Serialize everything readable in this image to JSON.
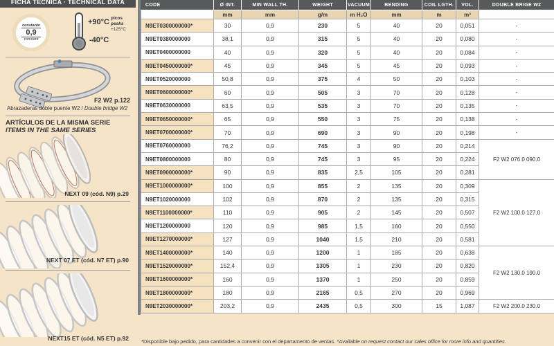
{
  "sidebar": {
    "header": "FICHA TÉCNICA · TECHNICAL DATA",
    "badge": {
      "top": "constante",
      "value": "0,9",
      "bottom": "constant"
    },
    "temperature": {
      "max": "+90°C",
      "min": "-40°C",
      "peaks_es": "picos",
      "peaks_en": "peaks",
      "peaks_value": "+125°C"
    },
    "clamp": {
      "ref": "F2 W2 p.122",
      "caption_es": "Abrazaderas doble puente W2 / ",
      "caption_en": "Double bridge W2"
    },
    "series": {
      "title_es": "ARTÍCULOS DE LA MISMA SERIE",
      "title_en": "ITEMS IN THE SAME SERIES",
      "items": [
        {
          "label": "NEXT 09 (cód. N9) p.29"
        },
        {
          "label": "NEXT 07 ET (cód. N7 ET) p.90"
        },
        {
          "label": "NEXT15 ET (cód. N5 ET) p.92"
        }
      ]
    }
  },
  "table": {
    "headers": [
      "CODE",
      "Ø INT.",
      "MIN WALL TH.",
      "WEIGHT",
      "VACUUM",
      "BENDING",
      "COIL LGTH.",
      "VOL.",
      "DOUBLE BRIGE W2"
    ],
    "units": [
      "",
      "mm",
      "mm",
      "g/m",
      "m H₂O",
      "mm",
      "m",
      "m³",
      ""
    ],
    "rows": [
      {
        "code": "N9ET0300000000*",
        "starred": true,
        "values": [
          "30",
          "0,9",
          "230",
          "5",
          "40",
          "20",
          "0,051"
        ],
        "bridge": "-",
        "bridge_span": 1
      },
      {
        "code": "N9ET0380000000",
        "starred": false,
        "values": [
          "38,1",
          "0,9",
          "315",
          "5",
          "40",
          "20",
          "0,080"
        ],
        "bridge": "-",
        "bridge_span": 1
      },
      {
        "code": "N9ET0400000000",
        "starred": false,
        "values": [
          "40",
          "0,9",
          "320",
          "5",
          "40",
          "20",
          "0,084"
        ],
        "bridge": "-",
        "bridge_span": 1
      },
      {
        "code": "N9ET0450000000*",
        "starred": true,
        "values": [
          "45",
          "0,9",
          "345",
          "5",
          "45",
          "20",
          "0,093"
        ],
        "bridge": "-",
        "bridge_span": 1
      },
      {
        "code": "N9ET0520000000",
        "starred": false,
        "values": [
          "50,8",
          "0,9",
          "375",
          "4",
          "50",
          "20",
          "0,103"
        ],
        "bridge": "-",
        "bridge_span": 1
      },
      {
        "code": "N9ET0600000000*",
        "starred": true,
        "values": [
          "60",
          "0,9",
          "505",
          "3",
          "70",
          "20",
          "0,128"
        ],
        "bridge": "-",
        "bridge_span": 1
      },
      {
        "code": "N9ET0630000000",
        "starred": false,
        "values": [
          "63,5",
          "0,9",
          "535",
          "3",
          "70",
          "20",
          "0,135"
        ],
        "bridge": "-",
        "bridge_span": 1
      },
      {
        "code": "N9ET0650000000*",
        "starred": true,
        "values": [
          "65",
          "0,9",
          "550",
          "3",
          "75",
          "20",
          "0,138"
        ],
        "bridge": "-",
        "bridge_span": 1
      },
      {
        "code": "N9ET0700000000*",
        "starred": true,
        "values": [
          "70",
          "0,9",
          "690",
          "3",
          "90",
          "20",
          "0,198"
        ],
        "bridge": "-",
        "bridge_span": 1
      },
      {
        "code": "N9ET0760000000",
        "starred": false,
        "values": [
          "76,2",
          "0,9",
          "745",
          "3",
          "90",
          "20",
          "0,214"
        ],
        "bridge": "F2 W2 076.0 090.0",
        "bridge_span": 3
      },
      {
        "code": "N9ET0800000000",
        "starred": false,
        "values": [
          "80",
          "0,9",
          "745",
          "3",
          "95",
          "20",
          "0,224"
        ],
        "bridge": null
      },
      {
        "code": "N9ET0900000000*",
        "starred": true,
        "values": [
          "90",
          "0,9",
          "835",
          "2,5",
          "105",
          "20",
          "0,281"
        ],
        "bridge": null
      },
      {
        "code": "N9ET1000000000*",
        "starred": true,
        "values": [
          "100",
          "0,9",
          "855",
          "2",
          "135",
          "20",
          "0,309"
        ],
        "bridge": "F2 W2 100.0 127.0",
        "bridge_span": 5
      },
      {
        "code": "N9ET1020000000",
        "starred": false,
        "values": [
          "102",
          "0,9",
          "870",
          "2",
          "135",
          "20",
          "0,315"
        ],
        "bridge": null
      },
      {
        "code": "N9ET1100000000*",
        "starred": true,
        "values": [
          "110",
          "0,9",
          "905",
          "2",
          "145",
          "20",
          "0,507"
        ],
        "bridge": null
      },
      {
        "code": "N9ET1200000000",
        "starred": false,
        "values": [
          "120",
          "0,9",
          "985",
          "1,5",
          "160",
          "20",
          "0,550"
        ],
        "bridge": null
      },
      {
        "code": "N9ET1270000000*",
        "starred": true,
        "values": [
          "127",
          "0,9",
          "1040",
          "1,5",
          "210",
          "20",
          "0,581"
        ],
        "bridge": null
      },
      {
        "code": "N9ET1400000000*",
        "starred": true,
        "values": [
          "140",
          "0,9",
          "1200",
          "1",
          "185",
          "20",
          "0,638"
        ],
        "bridge": "F2 W2 130.0 190.0",
        "bridge_span": 4
      },
      {
        "code": "N9ET1520000000*",
        "starred": true,
        "values": [
          "152,4",
          "0,9",
          "1305",
          "1",
          "230",
          "20",
          "0,820"
        ],
        "bridge": null
      },
      {
        "code": "N9ET1600000000*",
        "starred": true,
        "values": [
          "160",
          "0,9",
          "1370",
          "1",
          "250",
          "20",
          "0,859"
        ],
        "bridge": null
      },
      {
        "code": "N9ET1800000000*",
        "starred": true,
        "values": [
          "180",
          "0,9",
          "2165",
          "0,5",
          "270",
          "20",
          "0,969"
        ],
        "bridge": null
      },
      {
        "code": "N9ET2030000000*",
        "starred": true,
        "values": [
          "203,2",
          "0,9",
          "2435",
          "0,5",
          "300",
          "15",
          "1,087"
        ],
        "bridge": "F2 W2 200.0 230.0",
        "bridge_span": 1
      }
    ]
  },
  "footnote": {
    "es": "*Disponible bajo pedido, para cantidades a convenir con el departamento de ventas. ",
    "en": "*Available on request contact our sales office for more info and quantities."
  }
}
